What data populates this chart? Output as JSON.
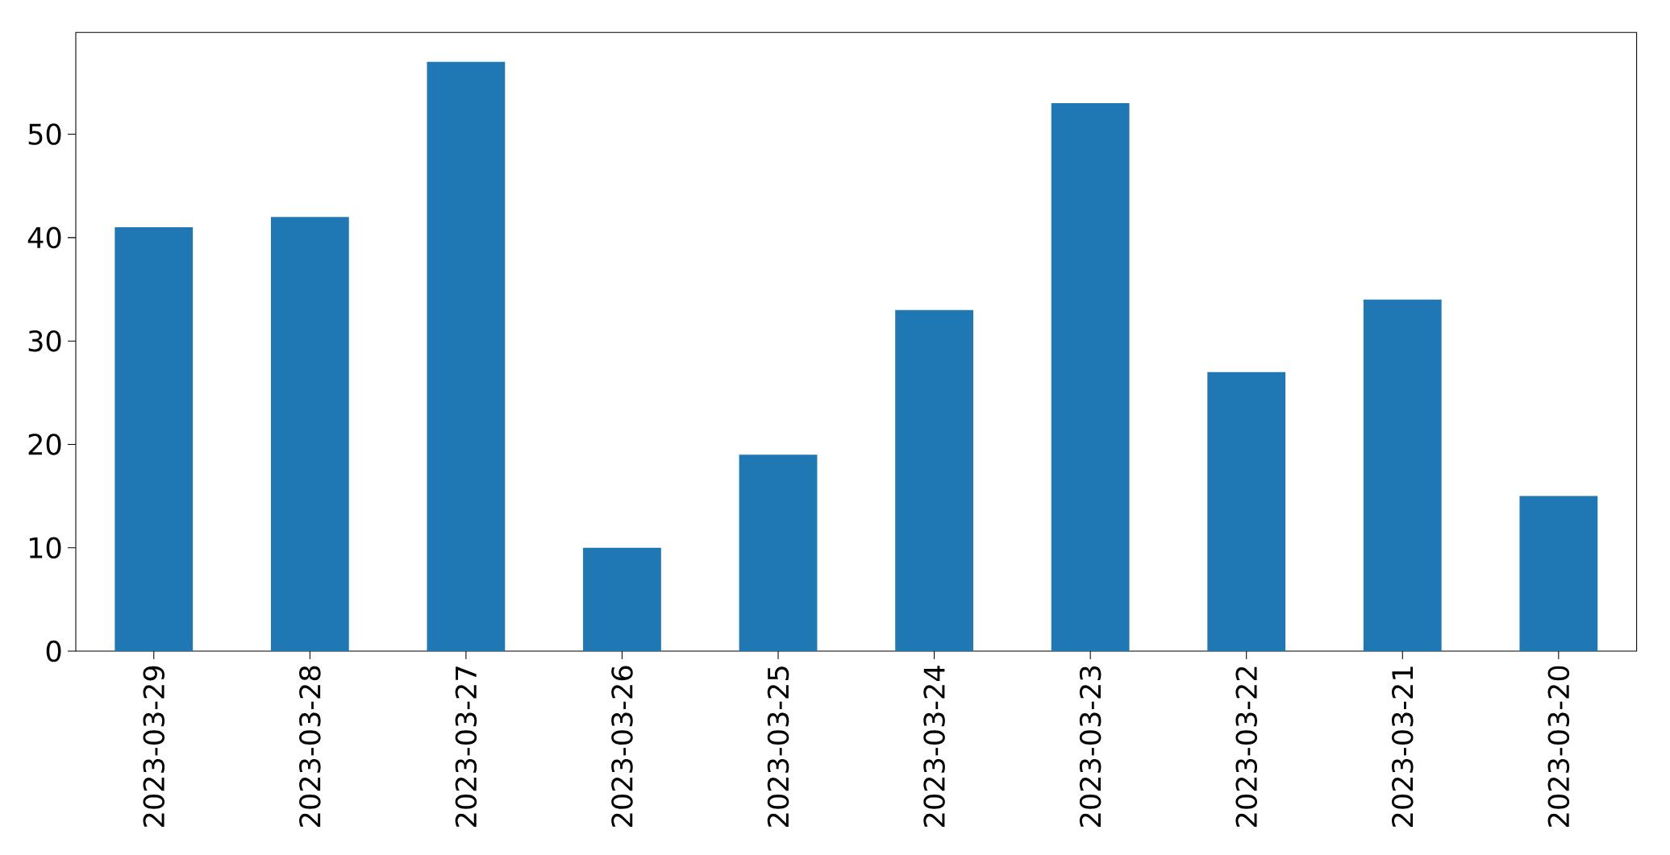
{
  "chart_data": {
    "type": "bar",
    "categories": [
      "2023-03-29",
      "2023-03-28",
      "2023-03-27",
      "2023-03-26",
      "2023-03-25",
      "2023-03-24",
      "2023-03-23",
      "2023-03-22",
      "2023-03-21",
      "2023-03-20"
    ],
    "values": [
      41,
      42,
      57,
      10,
      19,
      33,
      53,
      27,
      34,
      15
    ],
    "color": "#1f77b4",
    "ylim": [
      0,
      59.85
    ],
    "yticks": [
      0,
      10,
      20,
      30,
      40,
      50
    ]
  }
}
